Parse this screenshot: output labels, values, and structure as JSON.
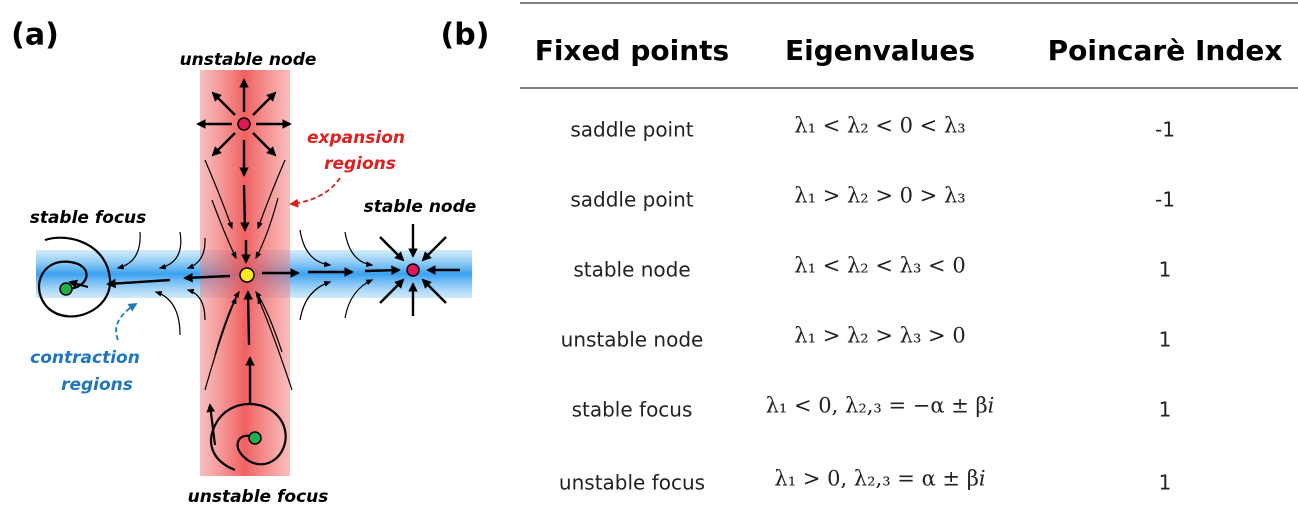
{
  "panel_a": {
    "label": "(a)",
    "unstable_node": "unstable node",
    "expansion_regions": [
      "expansion",
      "regions"
    ],
    "stable_focus": "stable focus",
    "stable_node": "stable node",
    "contraction_regions": [
      "contraction",
      "regions"
    ],
    "unstable_focus": "unstable focus"
  },
  "panel_b": {
    "label": "(b)",
    "table": {
      "header": [
        "Fixed points",
        "Eigenvalues",
        "Poincarè Index"
      ],
      "rows": [
        [
          "saddle point",
          "λ₁ < λ₂ < 0 < λ₃",
          "-1"
        ],
        [
          "saddle point",
          "λ₁ > λ₂ > 0 > λ₃",
          "-1"
        ],
        [
          "stable node",
          "λ₁ < λ₂ < λ₃ < 0",
          "1"
        ],
        [
          "unstable node",
          "λ₁ > λ₂ > λ₃ > 0",
          "1"
        ],
        [
          "stable focus",
          "λ₁ < 0, λ₂,₃ = −α ± β𝑖",
          "1"
        ],
        [
          "unstable focus",
          "λ₁ > 0, λ₂,₃ = α ± β𝑖",
          "1"
        ]
      ]
    }
  }
}
